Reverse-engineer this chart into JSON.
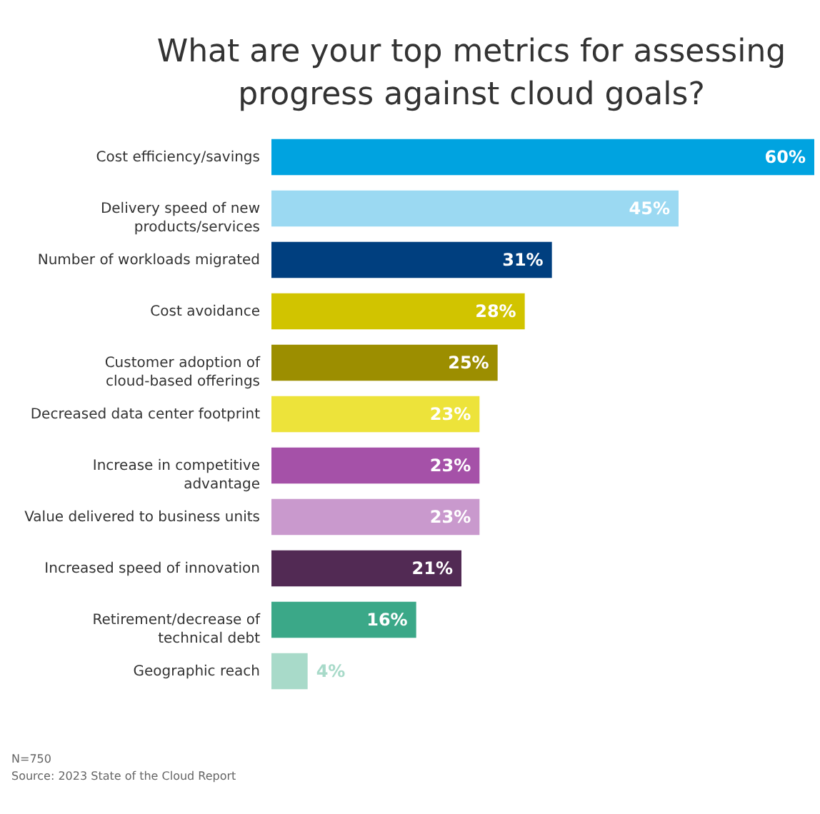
{
  "chart_data": {
    "type": "bar",
    "orientation": "horizontal",
    "title": "What are your top metrics for assessing\nprogress against cloud goals?",
    "categories": [
      "Cost efficiency/savings",
      "Delivery speed of new\nproducts/services",
      "Number of workloads migrated",
      "Cost avoidance",
      "Customer adoption of\ncloud-based offerings",
      "Decreased data center footprint",
      "Increase in competitive\nadvantage",
      "Value delivered to business units",
      "Increased speed of innovation",
      "Retirement/decrease of\ntechnical debt",
      "Geographic reach"
    ],
    "values": [
      60,
      45,
      31,
      28,
      25,
      23,
      23,
      23,
      21,
      16,
      4
    ],
    "colors": [
      "#00a3e0",
      "#9bd9f2",
      "#003f7f",
      "#d1c400",
      "#9c8e00",
      "#ede33a",
      "#a551a8",
      "#c999cd",
      "#522a54",
      "#3ba888",
      "#a8dac9"
    ],
    "value_labels": [
      "60%",
      "45%",
      "31%",
      "28%",
      "25%",
      "23%",
      "23%",
      "23%",
      "21%",
      "16%",
      "4%"
    ],
    "grid": false,
    "annotations": [
      "N=750",
      "Source: 2023 State of the Cloud Report"
    ]
  }
}
